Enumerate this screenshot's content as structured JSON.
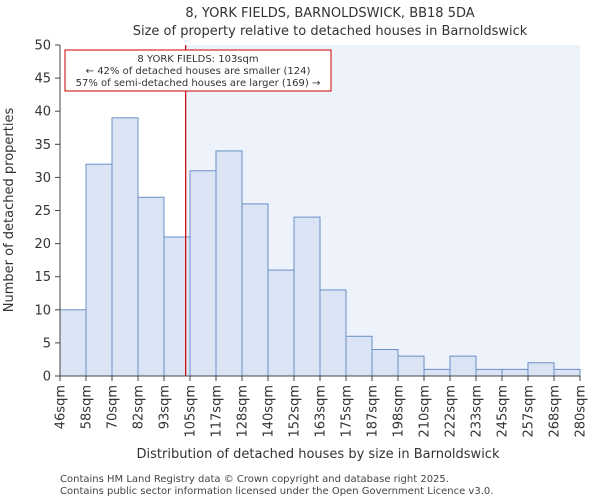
{
  "chart_data": {
    "type": "bar",
    "title": "8, YORK FIELDS, BARNOLDSWICK, BB18 5DA",
    "subtitle": "Size of property relative to detached houses in Barnoldswick",
    "xlabel": "Distribution of detached houses by size in Barnoldswick",
    "ylabel": "Number of detached properties",
    "x_tick_labels": [
      "46sqm",
      "58sqm",
      "70sqm",
      "82sqm",
      "93sqm",
      "105sqm",
      "117sqm",
      "128sqm",
      "140sqm",
      "152sqm",
      "163sqm",
      "175sqm",
      "187sqm",
      "198sqm",
      "210sqm",
      "222sqm",
      "233sqm",
      "245sqm",
      "257sqm",
      "268sqm",
      "280sqm"
    ],
    "values": [
      10,
      32,
      39,
      27,
      21,
      31,
      34,
      26,
      16,
      24,
      13,
      6,
      4,
      3,
      1,
      3,
      1,
      1,
      2,
      1
    ],
    "ylim": [
      0,
      50
    ],
    "y_ticks": [
      0,
      5,
      10,
      15,
      20,
      25,
      30,
      35,
      40,
      45,
      50
    ],
    "grid": false,
    "highlight_value_sqm": 103,
    "colors": {
      "bar_fill": "#dae4f4",
      "bar_stroke": "#6a8fc8",
      "marker_line": "#cc0000",
      "shade": "#eef2fa"
    },
    "annotation": {
      "line1": "8 YORK FIELDS: 103sqm",
      "line2": "← 42% of detached houses are smaller (124)",
      "line3": "57% of semi-detached houses are larger (169) →"
    }
  },
  "footer": {
    "line1": "Contains HM Land Registry data © Crown copyright and database right 2025.",
    "line2": "Contains public sector information licensed under the Open Government Licence v3.0."
  }
}
